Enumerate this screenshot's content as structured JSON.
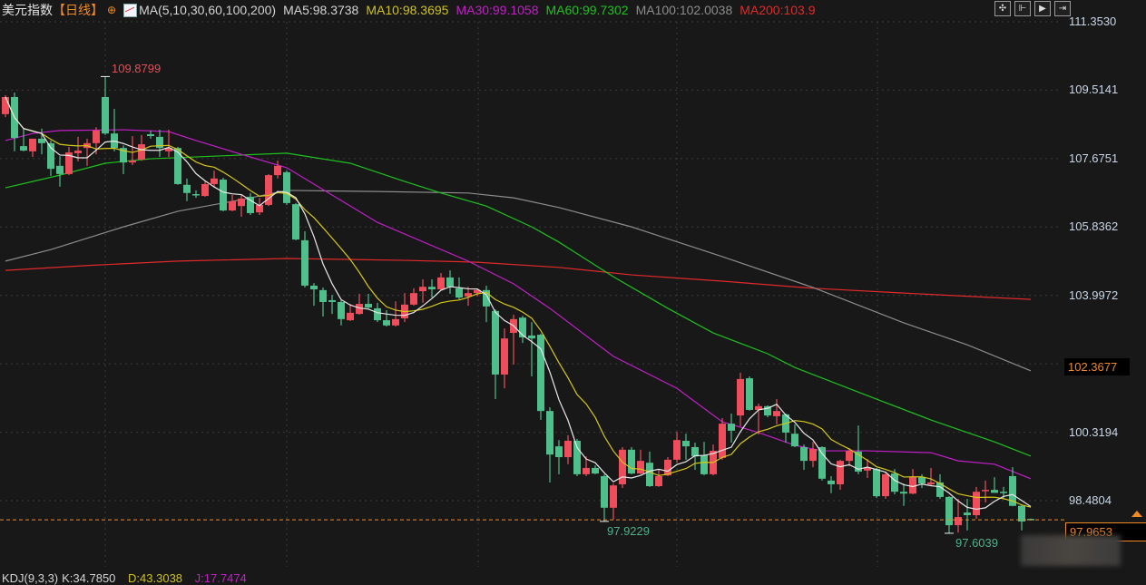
{
  "header": {
    "title": "美元指数",
    "period": "【日线】",
    "ma_params": "MA(5,10,30,60,100,200)",
    "ma5": "MA5:98.3738",
    "ma10": "MA10:98.3695",
    "ma30": "MA30:99.1058",
    "ma60": "MA60:99.7302",
    "ma100": "MA100:102.0038",
    "ma200": "MA200:103.9"
  },
  "toolbar": {
    "icons": [
      "crosshair-icon",
      "zoom-in-icon",
      "play-icon",
      "exit-icon"
    ]
  },
  "indicator": {
    "kdj_params": "KDJ(9,3,3)",
    "k": "K:34.7850",
    "d": "D:43.3038",
    "j": "J:17.7474"
  },
  "colors": {
    "up": "#ee4e5c",
    "down": "#4fbf8c",
    "ma5": "#e8e8e8",
    "ma10": "#d6c81a",
    "ma30": "#c21fc8",
    "ma60": "#1fc21f",
    "ma100": "#8c8c8c",
    "ma200": "#e02a2a",
    "last": "#f08a24",
    "background": "#181818"
  },
  "chart_data": {
    "type": "candlestick",
    "ylim": [
      97.4,
      111.353
    ],
    "y_ticks": [
      "111.3530",
      "109.5141",
      "107.6751",
      "105.8362",
      "103.9972",
      "100.3194",
      "98.4804"
    ],
    "highlight_price": "102.3677",
    "last_price": "97.9653",
    "annotations": {
      "high": {
        "index": 11,
        "value": "109.8799"
      },
      "low1": {
        "index": 66,
        "value": "97.9229"
      },
      "low2": {
        "index": 104,
        "value": "97.6039"
      }
    },
    "ohlc": [
      [
        108.87,
        109.38,
        108.79,
        109.33
      ],
      [
        109.33,
        109.45,
        107.87,
        108.23
      ],
      [
        108.01,
        108.5,
        107.87,
        107.89
      ],
      [
        107.87,
        108.21,
        107.72,
        108.21
      ],
      [
        108.21,
        108.48,
        107.79,
        108.09
      ],
      [
        108.09,
        108.16,
        107.21,
        107.4
      ],
      [
        107.48,
        107.74,
        106.92,
        107.26
      ],
      [
        107.26,
        107.99,
        107.23,
        107.84
      ],
      [
        107.82,
        108.26,
        107.6,
        107.89
      ],
      [
        107.96,
        108.21,
        107.48,
        108.09
      ],
      [
        108.09,
        108.52,
        107.79,
        108.43
      ],
      [
        109.33,
        109.8799,
        108.31,
        108.35
      ],
      [
        108.35,
        109.01,
        107.87,
        107.96
      ],
      [
        107.96,
        108.03,
        107.26,
        107.57
      ],
      [
        107.57,
        108.28,
        107.5,
        107.62
      ],
      [
        107.65,
        108.31,
        107.62,
        108.06
      ],
      [
        108.33,
        108.43,
        108.21,
        108.28
      ],
      [
        108.26,
        108.45,
        107.72,
        107.96
      ],
      [
        107.87,
        108.45,
        107.72,
        107.96
      ],
      [
        107.96,
        107.99,
        106.97,
        106.99
      ],
      [
        106.97,
        107.14,
        106.53,
        106.75
      ],
      [
        106.72,
        106.82,
        106.62,
        106.7
      ],
      [
        106.67,
        107.06,
        106.65,
        106.99
      ],
      [
        106.99,
        107.35,
        106.89,
        107.14
      ],
      [
        107.11,
        107.16,
        106.26,
        106.28
      ],
      [
        106.28,
        106.7,
        106.26,
        106.53
      ],
      [
        106.4,
        106.7,
        106.11,
        106.6
      ],
      [
        106.65,
        106.75,
        106.16,
        106.21
      ],
      [
        106.23,
        106.62,
        106.16,
        106.43
      ],
      [
        106.43,
        107.26,
        106.4,
        107.23
      ],
      [
        107.23,
        107.62,
        107.14,
        107.48
      ],
      [
        107.31,
        107.35,
        106.43,
        106.48
      ],
      [
        106.45,
        106.48,
        105.48,
        105.5
      ],
      [
        105.48,
        105.72,
        104.21,
        104.26
      ],
      [
        104.26,
        104.33,
        103.72,
        104.16
      ],
      [
        104.14,
        104.21,
        103.43,
        103.82
      ],
      [
        103.87,
        104.01,
        103.5,
        103.82
      ],
      [
        103.82,
        103.87,
        103.19,
        103.36
      ],
      [
        103.33,
        103.77,
        103.31,
        103.53
      ],
      [
        103.5,
        104.04,
        103.48,
        103.77
      ],
      [
        103.77,
        104.04,
        103.65,
        103.67
      ],
      [
        103.65,
        103.8,
        103.28,
        103.33
      ],
      [
        103.33,
        103.6,
        103.16,
        103.19
      ],
      [
        103.19,
        103.84,
        103.16,
        103.36
      ],
      [
        103.38,
        104.06,
        103.28,
        103.75
      ],
      [
        103.75,
        104.19,
        103.72,
        104.06
      ],
      [
        104.11,
        104.43,
        103.8,
        104.23
      ],
      [
        104.23,
        104.43,
        103.94,
        104.16
      ],
      [
        104.16,
        104.6,
        104.14,
        104.48
      ],
      [
        104.48,
        104.67,
        104.04,
        104.23
      ],
      [
        104.19,
        104.48,
        103.89,
        103.94
      ],
      [
        103.97,
        104.23,
        103.72,
        104.06
      ],
      [
        104.06,
        104.16,
        103.97,
        104.14
      ],
      [
        104.14,
        104.26,
        103.28,
        103.7
      ],
      [
        103.58,
        103.62,
        101.21,
        101.87
      ],
      [
        101.87,
        103.11,
        101.5,
        102.84
      ],
      [
        102.99,
        103.48,
        102.14,
        103.36
      ],
      [
        103.4,
        103.45,
        102.72,
        102.87
      ],
      [
        102.92,
        103.28,
        101.82,
        102.84
      ],
      [
        102.94,
        102.97,
        100.65,
        100.89
      ],
      [
        100.89,
        100.99,
        98.97,
        99.72
      ],
      [
        99.94,
        100.11,
        99.19,
        99.65
      ],
      [
        99.65,
        100.24,
        99.46,
        100.09
      ],
      [
        100.09,
        100.14,
        99.14,
        99.19
      ],
      [
        99.19,
        99.67,
        99.14,
        99.36
      ],
      [
        99.36,
        99.43,
        99.19,
        99.21
      ],
      [
        99.14,
        99.19,
        97.9229,
        98.29
      ],
      [
        98.29,
        98.94,
        97.97,
        98.89
      ],
      [
        98.92,
        99.92,
        98.82,
        99.85
      ],
      [
        99.85,
        99.92,
        99.19,
        99.21
      ],
      [
        99.21,
        99.85,
        99.19,
        99.55
      ],
      [
        99.5,
        99.8,
        98.85,
        98.87
      ],
      [
        98.87,
        99.33,
        98.85,
        99.14
      ],
      [
        99.16,
        99.65,
        99.14,
        99.58
      ],
      [
        99.58,
        100.33,
        99.5,
        100.11
      ],
      [
        100.09,
        100.28,
        99.58,
        99.94
      ],
      [
        99.92,
        100.04,
        99.31,
        99.67
      ],
      [
        99.7,
        100.06,
        99.16,
        99.19
      ],
      [
        99.19,
        99.99,
        99.16,
        99.82
      ],
      [
        99.63,
        100.7,
        99.58,
        100.55
      ],
      [
        100.55,
        100.82,
        100.04,
        100.36
      ],
      [
        100.77,
        101.92,
        100.48,
        101.75
      ],
      [
        101.77,
        101.82,
        100.9,
        100.92
      ],
      [
        100.92,
        101.09,
        100.26,
        101.02
      ],
      [
        101.02,
        101.04,
        100.72,
        100.77
      ],
      [
        100.75,
        101.21,
        100.53,
        100.89
      ],
      [
        100.8,
        100.82,
        100.04,
        100.31
      ],
      [
        100.28,
        100.53,
        99.92,
        99.94
      ],
      [
        99.92,
        99.99,
        99.31,
        99.55
      ],
      [
        99.55,
        100.06,
        99.38,
        99.87
      ],
      [
        99.92,
        99.94,
        99.02,
        99.07
      ],
      [
        99.02,
        99.14,
        98.68,
        98.92
      ],
      [
        98.92,
        99.58,
        98.77,
        99.55
      ],
      [
        99.55,
        99.89,
        99.41,
        99.82
      ],
      [
        99.8,
        100.5,
        99.19,
        99.26
      ],
      [
        99.29,
        99.6,
        99.09,
        99.36
      ],
      [
        99.33,
        99.36,
        98.55,
        98.6
      ],
      [
        98.6,
        99.26,
        98.53,
        99.19
      ],
      [
        99.21,
        99.33,
        98.65,
        98.72
      ],
      [
        98.72,
        98.94,
        98.34,
        98.67
      ],
      [
        98.67,
        99.33,
        98.65,
        99.11
      ],
      [
        99.11,
        99.19,
        98.82,
        98.94
      ],
      [
        98.92,
        99.36,
        98.89,
        98.97
      ],
      [
        98.97,
        99.19,
        98.53,
        98.58
      ],
      [
        98.58,
        98.6,
        97.6039,
        97.82
      ],
      [
        97.82,
        98.53,
        97.62,
        98.04
      ],
      [
        98.16,
        98.53,
        97.68,
        98.09
      ],
      [
        98.09,
        98.85,
        97.99,
        98.72
      ],
      [
        98.75,
        99.02,
        98.43,
        98.77
      ],
      [
        98.77,
        99.11,
        98.7,
        98.69
      ],
      [
        98.72,
        98.85,
        98.53,
        98.7
      ],
      [
        99.14,
        99.38,
        98.33,
        98.34
      ],
      [
        98.34,
        98.36,
        97.68,
        97.92
      ],
      [
        97.99,
        98.0,
        97.95,
        97.9653
      ]
    ],
    "ma_lines": {
      "ma30": [
        [
          0,
          108.16
        ],
        [
          3,
          108.35
        ],
        [
          6,
          108.43
        ],
        [
          13,
          108.45
        ],
        [
          18,
          108.4
        ],
        [
          21,
          108.16
        ],
        [
          26,
          107.79
        ],
        [
          31,
          107.43
        ],
        [
          41,
          105.96
        ],
        [
          51,
          104.92
        ],
        [
          56,
          104.31
        ],
        [
          60,
          103.65
        ],
        [
          67,
          102.36
        ],
        [
          74,
          101.5
        ],
        [
          79,
          100.6
        ],
        [
          83,
          100.31
        ],
        [
          87,
          99.97
        ],
        [
          90,
          99.82
        ],
        [
          95,
          99.82
        ],
        [
          102,
          99.77
        ],
        [
          105,
          99.55
        ],
        [
          109,
          99.46
        ],
        [
          113,
          99.07
        ]
      ],
      "ma60": [
        [
          0,
          106.89
        ],
        [
          6,
          107.23
        ],
        [
          11,
          107.55
        ],
        [
          16,
          107.67
        ],
        [
          23,
          107.74
        ],
        [
          31,
          107.82
        ],
        [
          38,
          107.55
        ],
        [
          44,
          107.06
        ],
        [
          48,
          106.75
        ],
        [
          53,
          106.4
        ],
        [
          58,
          105.84
        ],
        [
          61,
          105.43
        ],
        [
          67,
          104.5
        ],
        [
          73,
          103.65
        ],
        [
          78,
          102.99
        ],
        [
          84,
          102.43
        ],
        [
          87,
          102.06
        ],
        [
          96,
          101.21
        ],
        [
          102,
          100.65
        ],
        [
          109,
          100.06
        ],
        [
          113,
          99.68
        ]
      ],
      "ma100": [
        [
          0,
          104.92
        ],
        [
          5,
          105.23
        ],
        [
          13,
          105.84
        ],
        [
          19,
          106.26
        ],
        [
          26,
          106.57
        ],
        [
          31,
          106.82
        ],
        [
          41,
          106.79
        ],
        [
          51,
          106.75
        ],
        [
          56,
          106.62
        ],
        [
          61,
          106.36
        ],
        [
          69,
          105.84
        ],
        [
          79,
          105.04
        ],
        [
          89,
          104.21
        ],
        [
          99,
          103.26
        ],
        [
          106,
          102.67
        ],
        [
          113,
          101.97
        ]
      ],
      "ma200": [
        [
          0,
          104.67
        ],
        [
          9,
          104.8
        ],
        [
          19,
          104.92
        ],
        [
          31,
          104.99
        ],
        [
          44,
          104.94
        ],
        [
          52,
          104.89
        ],
        [
          61,
          104.75
        ],
        [
          69,
          104.55
        ],
        [
          79,
          104.38
        ],
        [
          89,
          104.19
        ],
        [
          99,
          104.06
        ],
        [
          113,
          103.89
        ]
      ]
    }
  }
}
